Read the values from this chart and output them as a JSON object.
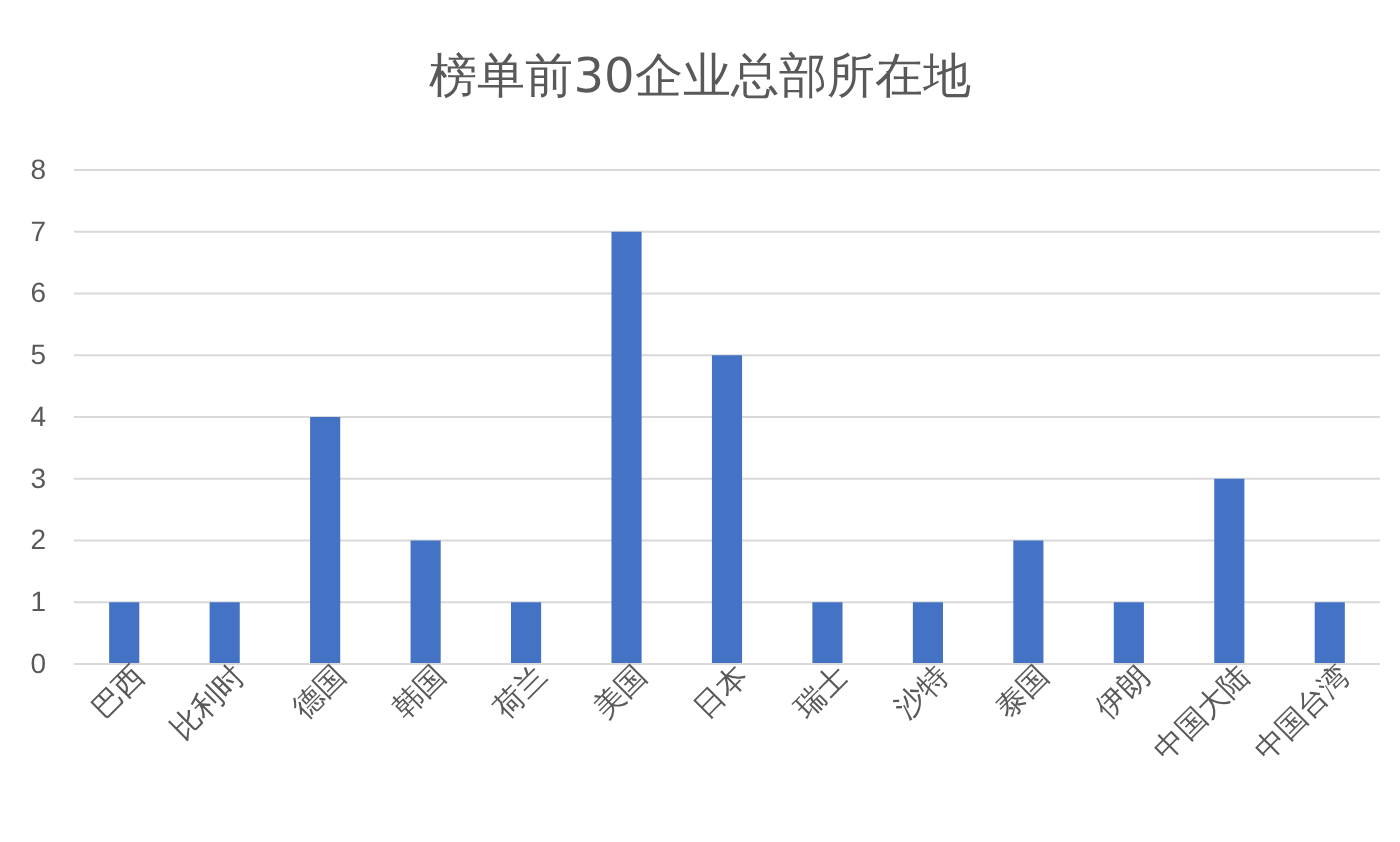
{
  "chart_data": {
    "type": "bar",
    "title": "榜单前30企业总部所在地",
    "categories": [
      "巴西",
      "比利时",
      "德国",
      "韩国",
      "荷兰",
      "美国",
      "日本",
      "瑞士",
      "沙特",
      "泰国",
      "伊朗",
      "中国大陆",
      "中国台湾"
    ],
    "values": [
      1,
      1,
      4,
      2,
      1,
      7,
      5,
      1,
      1,
      2,
      1,
      3,
      1
    ],
    "color": "#4472c4",
    "ylim": [
      0,
      8
    ],
    "yticks": [
      0,
      1,
      2,
      3,
      4,
      5,
      6,
      7,
      8
    ],
    "grid": "y"
  }
}
